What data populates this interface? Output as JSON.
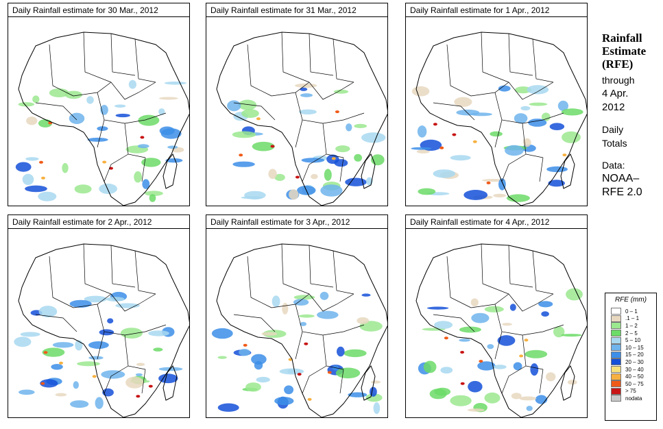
{
  "panels": [
    {
      "title": "Daily Rainfall estimate for  30 Mar., 2012"
    },
    {
      "title": "Daily Rainfall estimate for  31 Mar., 2012"
    },
    {
      "title": "Daily Rainfall estimate for  1 Apr., 2012"
    },
    {
      "title": "Daily Rainfall estimate for  2 Apr., 2012"
    },
    {
      "title": "Daily Rainfall estimate for  3 Apr., 2012"
    },
    {
      "title": "Daily Rainfall estimate for  4 Apr., 2012"
    }
  ],
  "sidebar": {
    "heading1": "Rainfall",
    "heading2": "Estimate",
    "heading3": "(RFE)",
    "through": "through",
    "date1": "4 Apr.",
    "date2": "2012",
    "totals1": "Daily",
    "totals2": "Totals",
    "data_label": "Data:",
    "source1": "NOAA–",
    "source2": "RFE 2.0"
  },
  "legend": {
    "title": "RFE (mm)",
    "items": [
      {
        "label": "0 – 1",
        "color": "#ffffff"
      },
      {
        "label": ".1 – 1",
        "color": "#e8d8c0"
      },
      {
        "label": "1 – 2",
        "color": "#9be88f"
      },
      {
        "label": "2 – 5",
        "color": "#6cdb67"
      },
      {
        "label": "5 – 10",
        "color": "#a8d8f0"
      },
      {
        "label": "10 – 15",
        "color": "#6fb4ec"
      },
      {
        "label": "15 – 20",
        "color": "#3c8ee8"
      },
      {
        "label": "20 – 30",
        "color": "#1450d8"
      },
      {
        "label": "30 – 40",
        "color": "#f7e27c"
      },
      {
        "label": "40 – 50",
        "color": "#f7b040"
      },
      {
        "label": "50 – 75",
        "color": "#f05a18"
      },
      {
        "label": "> 75",
        "color": "#c81414"
      },
      {
        "label": "nodata",
        "color": "#c8c8c8"
      }
    ]
  }
}
